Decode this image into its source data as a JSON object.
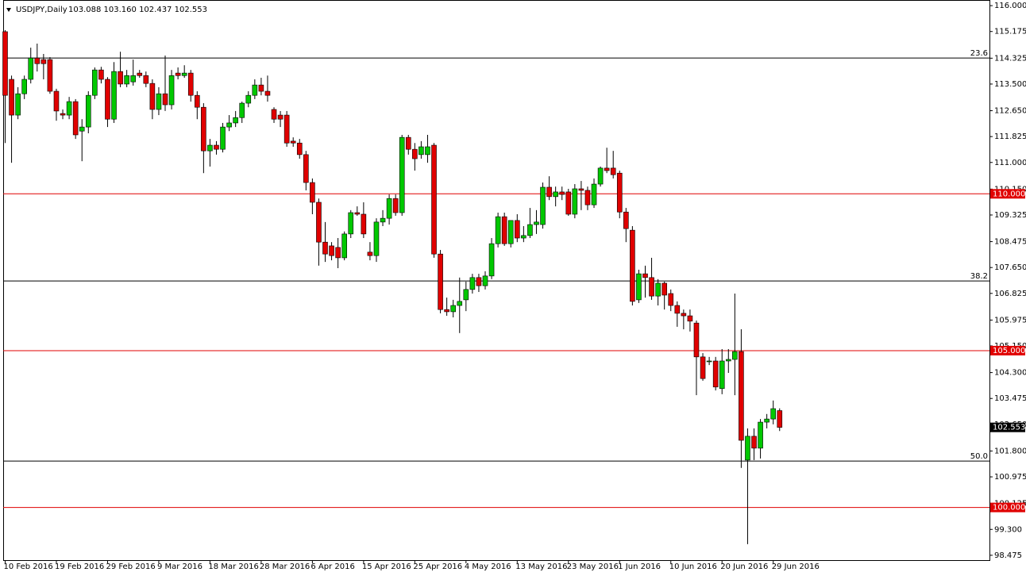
{
  "chart_data": {
    "type": "candlestick",
    "title": "USDJPY,Daily",
    "header_values": "103.088 103.160 102.437 102.553",
    "categories": [
      "10 Feb 2016",
      null,
      null,
      null,
      null,
      null,
      null,
      null,
      "19 Feb 2016",
      null,
      null,
      null,
      null,
      null,
      null,
      null,
      "29 Feb 2016",
      null,
      null,
      null,
      null,
      null,
      null,
      null,
      "9 Mar 2016",
      null,
      null,
      null,
      null,
      null,
      null,
      null,
      "18 Mar 2016",
      null,
      null,
      null,
      null,
      null,
      null,
      null,
      "28 Mar 2016",
      null,
      null,
      null,
      null,
      null,
      null,
      null,
      "6 Apr 2016",
      null,
      null,
      null,
      null,
      null,
      null,
      null,
      "15 Apr 2016",
      null,
      null,
      null,
      null,
      null,
      null,
      null,
      "25 Apr 2016",
      null,
      null,
      null,
      null,
      null,
      null,
      null,
      "4 May 2016",
      null,
      null,
      null,
      null,
      null,
      null,
      null,
      "13 May 2016",
      null,
      null,
      null,
      null,
      null,
      null,
      null,
      "23 May 2016",
      null,
      null,
      null,
      null,
      null,
      null,
      null,
      "1 Jun 2016",
      null,
      null,
      null,
      null,
      null,
      null,
      null,
      "10 Jun 2016",
      null,
      null,
      null,
      null,
      null,
      null,
      null,
      "20 Jun 2016",
      null,
      null,
      null,
      null,
      null,
      null,
      null,
      "29 Jun 2016",
      null
    ],
    "open": [
      115.17,
      113.65,
      112.51,
      113.19,
      113.65,
      114.33,
      114.28,
      114.28,
      113.27,
      112.56,
      112.51,
      112.94,
      112.0,
      112.13,
      113.14,
      113.95,
      113.65,
      112.38,
      113.9,
      113.5,
      113.57,
      113.85,
      113.77,
      113.52,
      112.69,
      113.19,
      112.84,
      113.85,
      113.77,
      113.85,
      113.14,
      112.76,
      111.37,
      111.55,
      111.42,
      112.13,
      112.26,
      112.43,
      112.89,
      113.14,
      113.47,
      113.27,
      112.69,
      112.51,
      112.51,
      111.68,
      111.62,
      111.25,
      110.36,
      109.73,
      108.46,
      108.34,
      108.29,
      107.96,
      108.72,
      109.4,
      109.35,
      108.14,
      108.03,
      109.1,
      109.22,
      109.85,
      109.4,
      111.8,
      111.42,
      111.25,
      111.25,
      111.55,
      108.08,
      106.31,
      106.24,
      106.44,
      106.62,
      106.95,
      107.33,
      107.07,
      107.38,
      108.41,
      109.27,
      108.41,
      109.15,
      108.59,
      108.67,
      109.02,
      109.02,
      110.21,
      109.91,
      110.06,
      110.06,
      109.35,
      110.16,
      110.11,
      109.65,
      110.31,
      110.82,
      110.82,
      110.66,
      109.42,
      108.84,
      106.62,
      107.45,
      107.33,
      106.74,
      107.15,
      106.82,
      106.44,
      106.19,
      106.11,
      105.88,
      104.8,
      104.67,
      104.67,
      103.79,
      104.67,
      104.72,
      104.97,
      101.51,
      102.27,
      101.89,
      102.72,
      102.82,
      103.088
    ],
    "high": [
      115.22,
      113.77,
      113.4,
      113.77,
      114.66,
      114.79,
      114.46,
      114.36,
      113.35,
      112.69,
      113.09,
      113.02,
      112.38,
      113.27,
      114.03,
      114.05,
      113.72,
      114.2,
      114.53,
      113.95,
      114.28,
      113.95,
      113.9,
      113.65,
      113.4,
      114.41,
      113.95,
      114.03,
      114.1,
      113.95,
      113.27,
      112.89,
      111.75,
      111.68,
      112.26,
      112.51,
      112.64,
      112.94,
      113.27,
      113.65,
      113.7,
      113.77,
      112.76,
      112.64,
      112.64,
      111.8,
      111.75,
      111.37,
      110.49,
      109.85,
      109.1,
      108.46,
      108.59,
      108.8,
      109.48,
      109.6,
      109.73,
      108.46,
      109.22,
      109.48,
      109.98,
      109.98,
      111.88,
      111.88,
      111.62,
      111.68,
      111.88,
      111.62,
      108.21,
      106.69,
      106.62,
      107.33,
      107.2,
      107.45,
      107.45,
      107.53,
      108.59,
      109.4,
      109.4,
      109.15,
      109.35,
      108.97,
      109.55,
      109.48,
      110.36,
      110.56,
      110.23,
      110.23,
      110.16,
      110.31,
      110.41,
      110.23,
      110.49,
      110.87,
      111.47,
      111.37,
      110.74,
      109.55,
      108.97,
      107.58,
      107.71,
      107.96,
      107.28,
      107.2,
      106.95,
      106.57,
      106.31,
      106.31,
      105.96,
      104.92,
      104.8,
      104.8,
      105.05,
      105.05,
      106.82,
      105.68,
      102.52,
      102.52,
      102.82,
      102.98,
      103.41,
      103.16
    ],
    "low": [
      111.62,
      110.99,
      112.38,
      113.02,
      113.52,
      113.9,
      113.65,
      113.19,
      112.33,
      112.38,
      112.38,
      111.75,
      111.04,
      111.93,
      113.02,
      113.52,
      112.13,
      112.26,
      113.4,
      113.4,
      113.45,
      113.7,
      113.4,
      112.38,
      112.51,
      112.64,
      112.69,
      113.65,
      113.7,
      112.94,
      112.38,
      110.66,
      110.87,
      111.25,
      111.32,
      112.0,
      112.13,
      112.26,
      112.76,
      113.02,
      113.14,
      112.94,
      112.26,
      112.13,
      111.5,
      111.5,
      111.12,
      110.11,
      109.35,
      107.71,
      107.83,
      107.88,
      107.63,
      107.88,
      108.59,
      109.3,
      108.59,
      107.88,
      107.83,
      108.97,
      109.02,
      109.3,
      109.3,
      111.25,
      110.74,
      111.12,
      110.99,
      107.96,
      106.19,
      106.11,
      106.06,
      105.56,
      106.26,
      106.82,
      106.87,
      106.95,
      107.28,
      108.29,
      108.34,
      108.29,
      108.46,
      108.46,
      108.59,
      108.72,
      108.89,
      109.8,
      109.6,
      109.8,
      109.3,
      109.22,
      109.48,
      109.48,
      109.55,
      110.23,
      110.66,
      110.49,
      109.22,
      108.46,
      106.44,
      106.52,
      106.69,
      106.62,
      106.44,
      106.31,
      106.26,
      105.76,
      105.68,
      105.61,
      103.58,
      104.04,
      104.54,
      103.73,
      103.61,
      104.29,
      103.58,
      101.26,
      98.83,
      101.51,
      101.56,
      102.52,
      102.65,
      102.437
    ],
    "close": [
      113.14,
      112.51,
      113.19,
      113.65,
      114.33,
      114.15,
      114.15,
      113.27,
      112.64,
      112.51,
      112.94,
      111.88,
      112.13,
      113.14,
      113.95,
      113.65,
      112.38,
      113.9,
      113.5,
      113.77,
      113.77,
      113.77,
      113.52,
      112.69,
      113.19,
      112.84,
      113.77,
      113.77,
      113.85,
      113.14,
      112.76,
      111.37,
      111.55,
      111.42,
      112.13,
      112.26,
      112.43,
      112.89,
      113.14,
      113.47,
      113.27,
      113.14,
      112.38,
      112.38,
      111.62,
      111.62,
      111.25,
      110.36,
      109.73,
      108.46,
      108.08,
      108.03,
      107.96,
      108.72,
      109.4,
      109.35,
      108.72,
      108.03,
      109.1,
      109.22,
      109.85,
      109.4,
      111.8,
      111.42,
      111.12,
      111.5,
      111.5,
      108.08,
      106.31,
      106.24,
      106.44,
      106.57,
      106.95,
      107.33,
      107.07,
      107.38,
      108.41,
      109.27,
      108.41,
      109.15,
      108.59,
      108.67,
      109.02,
      109.1,
      110.21,
      109.91,
      110.06,
      109.98,
      109.35,
      110.16,
      110.11,
      109.65,
      110.31,
      110.82,
      110.74,
      110.61,
      109.42,
      108.89,
      106.57,
      107.45,
      107.33,
      106.74,
      107.15,
      106.77,
      106.44,
      106.19,
      106.11,
      105.94,
      104.8,
      104.11,
      104.67,
      103.84,
      104.67,
      104.72,
      104.97,
      102.14,
      102.27,
      101.89,
      102.72,
      102.82,
      103.15,
      102.553
    ],
    "up_color": "#00c800",
    "down_color": "#e00000",
    "ylim": [
      98.32,
      116.18
    ],
    "yticks": [
      {
        "value": 116.0,
        "label": "116.000"
      },
      {
        "value": 115.175,
        "label": "115.175"
      },
      {
        "value": 114.325,
        "label": "114.325"
      },
      {
        "value": 113.5,
        "label": "113.500"
      },
      {
        "value": 112.65,
        "label": "112.650"
      },
      {
        "value": 111.825,
        "label": "111.825"
      },
      {
        "value": 111.0,
        "label": "111.000"
      },
      {
        "value": 110.15,
        "label": "110.150"
      },
      {
        "value": 109.325,
        "label": "109.325"
      },
      {
        "value": 108.475,
        "label": "108.475"
      },
      {
        "value": 107.65,
        "label": "107.650"
      },
      {
        "value": 106.825,
        "label": "106.825"
      },
      {
        "value": 105.975,
        "label": "105.975"
      },
      {
        "value": 105.15,
        "label": "105.150"
      },
      {
        "value": 104.3,
        "label": "104.300"
      },
      {
        "value": 103.475,
        "label": "103.475"
      },
      {
        "value": 102.65,
        "label": "102.650"
      },
      {
        "value": 101.8,
        "label": "101.800"
      },
      {
        "value": 100.975,
        "label": "100.975"
      },
      {
        "value": 100.125,
        "label": "100.125"
      },
      {
        "value": 99.3,
        "label": "99.300"
      },
      {
        "value": 98.475,
        "label": "98.475"
      }
    ],
    "fib_levels": [
      {
        "value": 114.33,
        "label": "23.6"
      },
      {
        "value": 107.22,
        "label": "38.2"
      },
      {
        "value": 101.48,
        "label": "50.0"
      }
    ],
    "price_levels": [
      {
        "value": 110.0,
        "label": "110.000",
        "color": "#e00000"
      },
      {
        "value": 105.0,
        "label": "105.000",
        "color": "#e00000"
      },
      {
        "value": 100.0,
        "label": "100.000",
        "color": "#e00000"
      }
    ],
    "last_price": {
      "value": 102.553,
      "label": "102.553",
      "color": "#000000"
    }
  }
}
